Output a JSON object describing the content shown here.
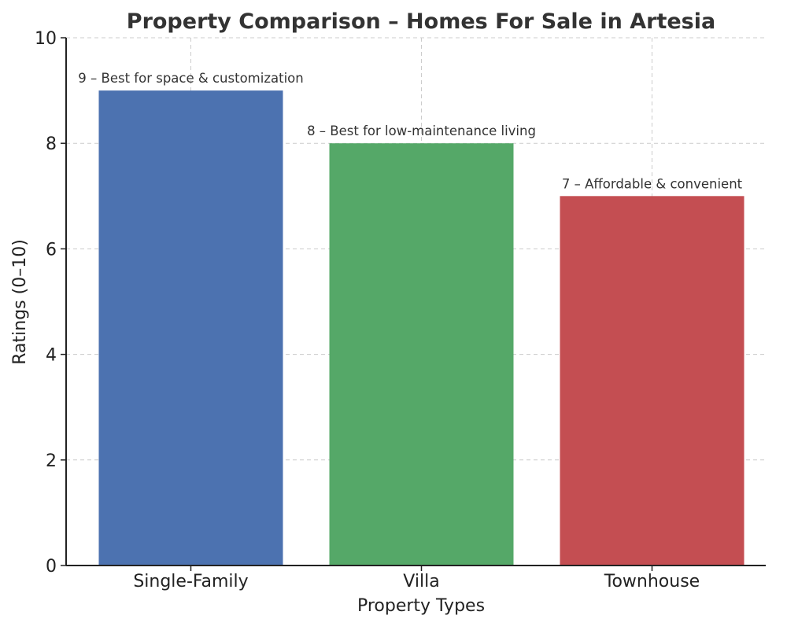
{
  "chart_data": {
    "type": "bar",
    "title": "Property Comparison – Homes For Sale in Artesia",
    "xlabel": "Property Types",
    "ylabel": "Ratings (0–10)",
    "categories": [
      "Single-Family",
      "Villa",
      "Townhouse"
    ],
    "values": [
      9,
      8,
      7
    ],
    "data_labels": [
      "9 – Best for space & customization",
      "8 – Best for low-maintenance living",
      "7 – Affordable & convenient"
    ],
    "colors": [
      "#4c72b0",
      "#55a868",
      "#c44e52"
    ],
    "ylim": [
      0,
      10
    ],
    "yticks": [
      0,
      2,
      4,
      6,
      8,
      10
    ],
    "grid": true,
    "legend": false
  }
}
